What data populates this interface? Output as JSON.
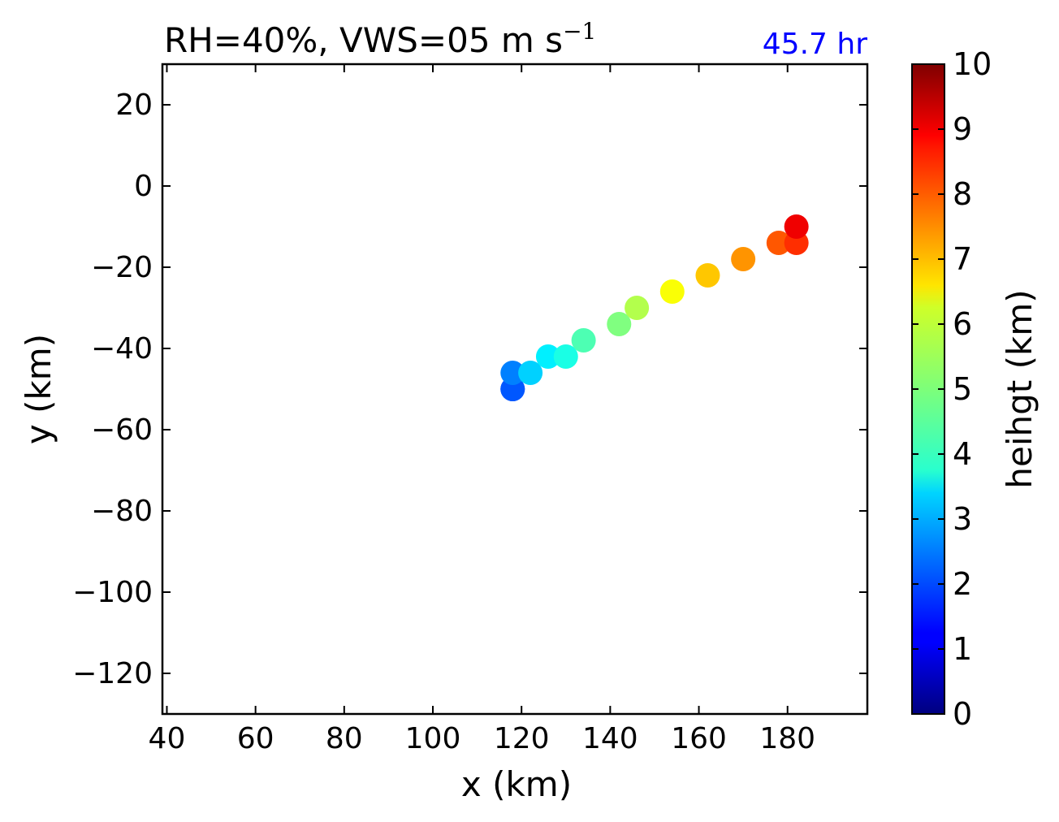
{
  "chart_data": {
    "type": "scatter",
    "title": "RH=40%, VWS=05 m s",
    "title_superscript": "−1",
    "time_label": "45.7 hr",
    "time_label_color": "#0000ff",
    "xlabel": "x (km)",
    "ylabel": "y (km)",
    "xlim": [
      39,
      198
    ],
    "ylim": [
      -130,
      30
    ],
    "xticks": [
      40,
      60,
      80,
      100,
      120,
      140,
      160,
      180
    ],
    "yticks": [
      20,
      0,
      -20,
      -40,
      -60,
      -80,
      -100,
      -120
    ],
    "xtick_labels": [
      "40",
      "60",
      "80",
      "100",
      "120",
      "140",
      "160",
      "180"
    ],
    "ytick_labels": [
      "20",
      "0",
      "−20",
      "−40",
      "−60",
      "−80",
      "−100",
      "−120"
    ],
    "grid": false,
    "colormap": "jet",
    "colorbar": {
      "label": "heihgt (km)",
      "range": [
        0,
        10
      ],
      "ticks": [
        0,
        1,
        2,
        3,
        4,
        5,
        6,
        7,
        8,
        9,
        10
      ],
      "tick_labels": [
        "0",
        "1",
        "2",
        "3",
        "4",
        "5",
        "6",
        "7",
        "8",
        "9",
        "10"
      ]
    },
    "points": [
      {
        "x": 118,
        "y": -50,
        "height": 1.8
      },
      {
        "x": 118,
        "y": -50,
        "height": 2.1
      },
      {
        "x": 118,
        "y": -46,
        "height": 2.5
      },
      {
        "x": 122,
        "y": -46,
        "height": 3.3
      },
      {
        "x": 126,
        "y": -42,
        "height": 3.6
      },
      {
        "x": 130,
        "y": -42,
        "height": 4.0
      },
      {
        "x": 134,
        "y": -38,
        "height": 4.5
      },
      {
        "x": 142,
        "y": -34,
        "height": 5.0
      },
      {
        "x": 146,
        "y": -30,
        "height": 5.5
      },
      {
        "x": 154,
        "y": -26,
        "height": 6.2
      },
      {
        "x": 162,
        "y": -22,
        "height": 6.8
      },
      {
        "x": 170,
        "y": -18,
        "height": 7.3
      },
      {
        "x": 178,
        "y": -14,
        "height": 7.9
      },
      {
        "x": 182,
        "y": -14,
        "height": 8.3
      },
      {
        "x": 182,
        "y": -10,
        "height": 8.9
      }
    ]
  }
}
